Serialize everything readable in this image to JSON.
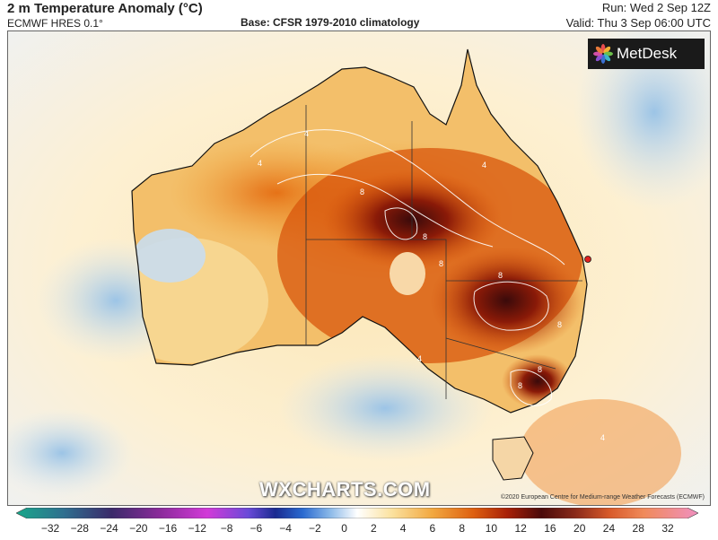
{
  "header": {
    "title": "2 m Temperature Anomaly (°C)",
    "model": "ECMWF HRES 0.1°",
    "base": "Base: CFSR 1979-2010 climatology",
    "run": "Run: Wed 2 Sep 12Z",
    "valid": "Valid: Thu 3 Sep 06:00 UTC"
  },
  "logo": {
    "text": "MetDesk",
    "icon": "flower-logo-icon"
  },
  "watermark": "WXCHARTS.COM",
  "copyright": "©2020 European Centre for Medium-range Weather Forecasts (ECMWF)",
  "map": {
    "region": "Australia",
    "contour_labels": [
      "4",
      "4",
      "4",
      "8",
      "8",
      "8",
      "8",
      "8",
      "8",
      "8",
      "4",
      "4"
    ]
  },
  "colorbar": {
    "ticks": [
      "−32",
      "−28",
      "−24",
      "−20",
      "−16",
      "−12",
      "−8",
      "−6",
      "−4",
      "−2",
      "0",
      "2",
      "4",
      "6",
      "8",
      "10",
      "12",
      "16",
      "20",
      "24",
      "28",
      "32"
    ],
    "colors": {
      "start": "#1aa88a",
      "mid": "#ffffff",
      "end": "#f090c0"
    }
  }
}
